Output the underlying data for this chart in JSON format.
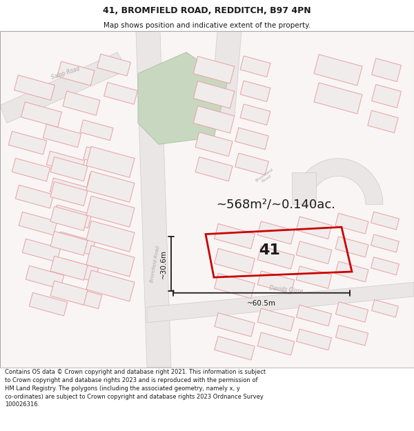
{
  "title": "41, BROMFIELD ROAD, REDDITCH, B97 4PN",
  "subtitle": "Map shows position and indicative extent of the property.",
  "footer": "Contains OS data © Crown copyright and database right 2021. This information is subject to Crown copyright and database rights 2023 and is reproduced with the permission of HM Land Registry. The polygons (including the associated geometry, namely x, y co-ordinates) are subject to Crown copyright and database rights 2023 Ordnance Survey 100026316.",
  "area_text": "~568m²/~0.140ac.",
  "width_label": "~60.5m",
  "height_label": "~30.6m",
  "plot_number": "41",
  "map_bg": "#f8f4f4",
  "road_fill": "#e8e4e4",
  "road_outline": "#c8c0c0",
  "building_fill": "#e8e4e4",
  "building_outline": "#e8a0a0",
  "parcel_outline": "#e8a0a0",
  "green_fill": "#c8d8c0",
  "green_outline": "#b0c8a8",
  "highlight_color": "#cc0000",
  "road_label_color": "#b0a8a8",
  "dim_line_color": "#1a1a1a",
  "text_color": "#1a1a1a",
  "title_fontsize": 9,
  "subtitle_fontsize": 7.5,
  "footer_fontsize": 6.0,
  "area_fontsize": 13,
  "dim_fontsize": 7.5,
  "plot_label_fontsize": 16
}
